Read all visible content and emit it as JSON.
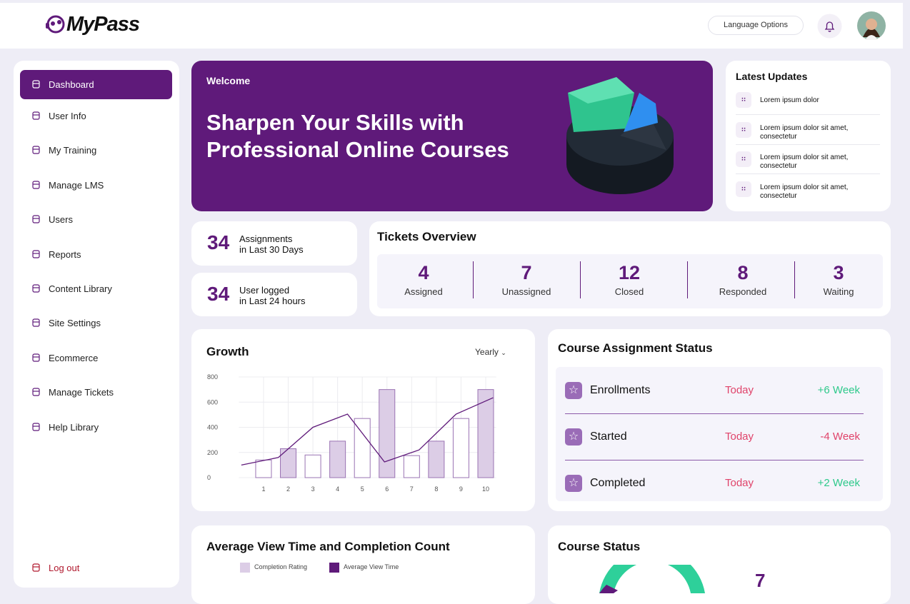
{
  "header": {
    "brand": "MyPass",
    "language_button": "Language Options"
  },
  "sidebar": {
    "items": [
      "Dashboard",
      "User Info",
      "My Training",
      "Manage LMS",
      "Users",
      "Reports",
      "Content Library",
      "Site Settings",
      "Ecommerce",
      "Manage Tickets",
      "Help Library"
    ],
    "logout": "Log out"
  },
  "banner": {
    "welcome": "Welcome",
    "headline_lines": [
      "Sharpen Your Skills with",
      "Professional Online Courses"
    ]
  },
  "latest_updates": {
    "title": "Latest Updates",
    "items": [
      "Lorem ipsum dolor",
      "Lorem ipsum dolor sit amet, consectetur",
      "Lorem ipsum dolor sit amet, consectetur",
      "Lorem ipsum dolor sit amet, consectetur"
    ]
  },
  "stats": [
    {
      "value": 34,
      "label_lines": [
        "Assignments",
        "in Last 30 Days"
      ]
    },
    {
      "value": 34,
      "label_lines": [
        "User logged",
        "in Last 24 hours"
      ]
    }
  ],
  "tickets": {
    "title": "Tickets Overview",
    "items": [
      {
        "value": 4,
        "label": "Assigned"
      },
      {
        "value": 7,
        "label": "Unassigned"
      },
      {
        "value": 12,
        "label": "Closed"
      },
      {
        "value": 8,
        "label": "Responded"
      },
      {
        "value": 3,
        "label": "Waiting"
      }
    ]
  },
  "chart_data": {
    "type": "bar",
    "title": "Growth",
    "period": "Yearly",
    "x": [
      1,
      2,
      3,
      4,
      5,
      6,
      7,
      8,
      9,
      10
    ],
    "values": [
      140,
      230,
      180,
      290,
      470,
      700,
      175,
      290,
      470,
      700
    ],
    "bar_fills": [
      "#ffffff",
      "#dccde6",
      "#ffffff",
      "#dccde6",
      "#ffffff",
      "#dccde6",
      "#ffffff",
      "#dccde6",
      "#ffffff",
      "#dccde6"
    ],
    "bar_stroke": "#9a73b3",
    "line": {
      "color": "#5f1a7a",
      "x": [
        0.1,
        1.6,
        3,
        4.4,
        5.9,
        7.3,
        8.8,
        10.3
      ],
      "values": [
        100,
        160,
        400,
        505,
        125,
        220,
        505,
        635
      ]
    },
    "xlim": [
      0,
      11
    ],
    "xticks": [
      1,
      2,
      3,
      4,
      5,
      6,
      7,
      8,
      9,
      10
    ],
    "ylim": [
      0,
      800
    ],
    "yticks": [
      0,
      200,
      400,
      600,
      800
    ],
    "grid": true
  },
  "course_assignment": {
    "title": "Course Assignment Status",
    "rows": [
      {
        "label": "Enrollments",
        "day": "Today",
        "change": "+6 Week",
        "change_color": "#2ec98b"
      },
      {
        "label": "Started",
        "day": "Today",
        "change": "-4 Week",
        "change_color": "#e0436a"
      },
      {
        "label": "Completed",
        "day": "Today",
        "change": "+2 Week",
        "change_color": "#2ec98b"
      }
    ]
  },
  "average_view": {
    "title": "Average View Time and Completion Count",
    "legend": [
      {
        "name": "Completion Rating",
        "color": "#dccde6"
      },
      {
        "name": "Average View Time",
        "color": "#5f1a7a"
      }
    ]
  },
  "course_status": {
    "title": "Course Status",
    "value": 7
  }
}
